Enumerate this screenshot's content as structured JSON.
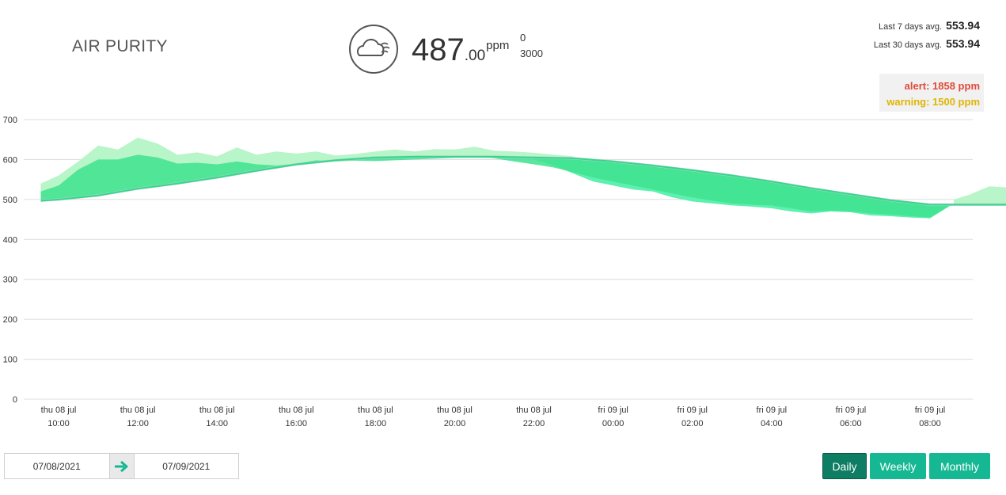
{
  "title": "AIR PURITY",
  "reading": {
    "icon": "cloud-wind-icon",
    "value_int": "487",
    "value_dec": ".00",
    "unit": "ppm",
    "range_min": "0",
    "range_max": "3000"
  },
  "averages": {
    "last7_label": "Last 7 days avg.",
    "last7_value": "553.94",
    "last30_label": "Last 30 days avg.",
    "last30_value": "553.94"
  },
  "thresholds": {
    "alert": "alert: 1858 ppm",
    "warning": "warning: 1500 ppm",
    "alert_color": "#e04a3a",
    "warning_color": "#e0b500"
  },
  "chart_data": {
    "type": "area",
    "ylim": [
      0,
      700
    ],
    "yticks": [
      0,
      100,
      200,
      300,
      400,
      500,
      600,
      700
    ],
    "xticks": [
      {
        "hour": 10,
        "day": "thu 08 jul",
        "time": "10:00"
      },
      {
        "hour": 12,
        "day": "thu 08 jul",
        "time": "12:00"
      },
      {
        "hour": 14,
        "day": "thu 08 jul",
        "time": "14:00"
      },
      {
        "hour": 16,
        "day": "thu 08 jul",
        "time": "16:00"
      },
      {
        "hour": 18,
        "day": "thu 08 jul",
        "time": "18:00"
      },
      {
        "hour": 20,
        "day": "thu 08 jul",
        "time": "20:00"
      },
      {
        "hour": 22,
        "day": "thu 08 jul",
        "time": "22:00"
      },
      {
        "hour": 24,
        "day": "fri 09 jul",
        "time": "00:00"
      },
      {
        "hour": 26,
        "day": "fri 09 jul",
        "time": "02:00"
      },
      {
        "hour": 28,
        "day": "fri 09 jul",
        "time": "04:00"
      },
      {
        "hour": 30,
        "day": "fri 09 jul",
        "time": "06:00"
      },
      {
        "hour": 32,
        "day": "fri 09 jul",
        "time": "08:00"
      }
    ],
    "xlim": [
      9.55,
      34.5
    ],
    "series": [
      {
        "role": "trend",
        "color": "#2fd98f",
        "x": [
          9.55,
          10,
          11,
          12,
          13,
          14,
          15,
          16,
          17,
          18,
          19,
          20,
          21,
          22,
          23,
          24,
          25,
          26,
          27,
          28,
          29,
          30,
          31,
          32,
          33,
          34.3
        ],
        "y": [
          497,
          500,
          510,
          527,
          540,
          555,
          572,
          588,
          598,
          605,
          607,
          607,
          607,
          605,
          603,
          595,
          585,
          573,
          560,
          545,
          528,
          513,
          498,
          487,
          487,
          487
        ]
      },
      {
        "role": "upper-band",
        "color": "#b8f5c8",
        "x": [
          9.55,
          10,
          10.5,
          11,
          11.5,
          12,
          12.5,
          13,
          13.5,
          14,
          14.5,
          15,
          15.5,
          16,
          16.5,
          17,
          17.5,
          18,
          18.5,
          19,
          19.5,
          20,
          20.5,
          21,
          21.5,
          22,
          22.5,
          23
        ],
        "y": [
          540,
          560,
          595,
          635,
          625,
          655,
          640,
          612,
          618,
          608,
          630,
          612,
          620,
          615,
          620,
          610,
          614,
          620,
          625,
          620,
          626,
          625,
          632,
          622,
          620,
          617,
          612,
          608
        ]
      },
      {
        "role": "upper-band-end",
        "color": "#b8f5c8",
        "x": [
          32.6,
          33,
          33.3,
          33.5,
          34.3
        ],
        "y": [
          500,
          512,
          525,
          533,
          528
        ]
      },
      {
        "role": "lower-band",
        "color": "#5df0b0",
        "x": [
          22,
          22.5,
          23,
          23.5,
          24,
          24.5,
          25,
          25.5,
          26,
          26.5,
          27,
          27.5,
          28,
          28.5,
          29,
          29.5,
          30,
          30.5,
          31,
          31.5,
          32,
          32.6
        ],
        "y": [
          600,
          585,
          565,
          545,
          535,
          525,
          520,
          505,
          495,
          490,
          485,
          482,
          478,
          470,
          465,
          470,
          468,
          460,
          458,
          455,
          453,
          490
        ]
      },
      {
        "role": "actual",
        "color": "#3ee28f",
        "x": [
          9.55,
          10,
          10.5,
          11,
          11.5,
          12,
          12.5,
          13,
          13.5,
          14,
          14.5,
          15,
          15.5,
          16,
          16.5,
          17,
          17.5,
          18,
          18.5,
          19,
          19.5,
          20,
          20.5,
          21,
          21.5,
          22,
          22.5,
          23,
          23.5,
          24,
          24.5,
          25,
          25.5,
          26,
          26.5,
          27,
          27.5,
          28,
          28.5,
          29,
          29.5,
          30,
          30.5,
          31,
          31.5,
          32,
          32.6,
          33,
          33.5,
          34.3
        ],
        "y": [
          520,
          535,
          575,
          600,
          600,
          612,
          605,
          590,
          592,
          588,
          595,
          588,
          585,
          590,
          598,
          595,
          597,
          596,
          598,
          600,
          602,
          604,
          606,
          603,
          595,
          588,
          580,
          568,
          555,
          545,
          535,
          525,
          515,
          505,
          497,
          490,
          487,
          485,
          478,
          470,
          472,
          470,
          465,
          462,
          458,
          455,
          490,
          488,
          486,
          485
        ]
      }
    ]
  },
  "date_range": {
    "from": "07/08/2021",
    "to": "07/09/2021",
    "arrow_icon": "arrow-right-icon"
  },
  "periods": {
    "daily": "Daily",
    "weekly": "Weekly",
    "monthly": "Monthly",
    "active": "daily"
  }
}
